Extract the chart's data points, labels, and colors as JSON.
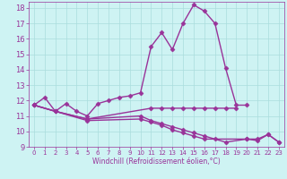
{
  "xlabel": "Windchill (Refroidissement éolien,°C)",
  "bg_color": "#cef3f3",
  "line_color": "#993399",
  "grid_color": "#aadddd",
  "xlim": [
    -0.5,
    23.5
  ],
  "ylim": [
    9,
    18.4
  ],
  "xticks": [
    0,
    1,
    2,
    3,
    4,
    5,
    6,
    7,
    8,
    9,
    10,
    11,
    12,
    13,
    14,
    15,
    16,
    17,
    18,
    19,
    20,
    21,
    22,
    23
  ],
  "yticks": [
    9,
    10,
    11,
    12,
    13,
    14,
    15,
    16,
    17,
    18
  ],
  "series": [
    {
      "x": [
        0,
        1,
        2,
        3,
        4,
        5,
        6,
        7,
        8,
        9,
        10,
        11,
        12,
        13,
        14,
        15,
        16,
        17,
        18,
        19,
        20
      ],
      "y": [
        11.7,
        12.2,
        11.3,
        11.8,
        11.3,
        11.0,
        11.8,
        12.0,
        12.2,
        12.3,
        12.5,
        15.5,
        16.4,
        15.3,
        17.0,
        18.2,
        17.8,
        17.0,
        14.1,
        11.7,
        11.7
      ],
      "marker": "D",
      "markersize": 2.5,
      "linewidth": 1.0
    },
    {
      "x": [
        0,
        2,
        5,
        11,
        12,
        13,
        14,
        15,
        16,
        17,
        18,
        19
      ],
      "y": [
        11.7,
        11.3,
        10.8,
        11.5,
        11.5,
        11.5,
        11.5,
        11.5,
        11.5,
        11.5,
        11.5,
        11.5
      ],
      "marker": "D",
      "markersize": 2.5,
      "linewidth": 1.0
    },
    {
      "x": [
        0,
        2,
        5,
        10,
        11,
        12,
        13,
        14,
        15,
        16,
        17,
        18,
        20,
        21,
        22,
        23
      ],
      "y": [
        11.7,
        11.3,
        10.8,
        11.0,
        10.7,
        10.5,
        10.3,
        10.1,
        9.9,
        9.7,
        9.5,
        9.3,
        9.5,
        9.5,
        9.8,
        9.3
      ],
      "marker": "D",
      "markersize": 2.5,
      "linewidth": 1.0
    },
    {
      "x": [
        0,
        5,
        10,
        11,
        12,
        13,
        14,
        15,
        16,
        20,
        21,
        22,
        23
      ],
      "y": [
        11.7,
        10.7,
        10.8,
        10.6,
        10.4,
        10.1,
        9.9,
        9.7,
        9.5,
        9.5,
        9.4,
        9.8,
        9.3
      ],
      "marker": "D",
      "markersize": 2.5,
      "linewidth": 1.0
    }
  ]
}
